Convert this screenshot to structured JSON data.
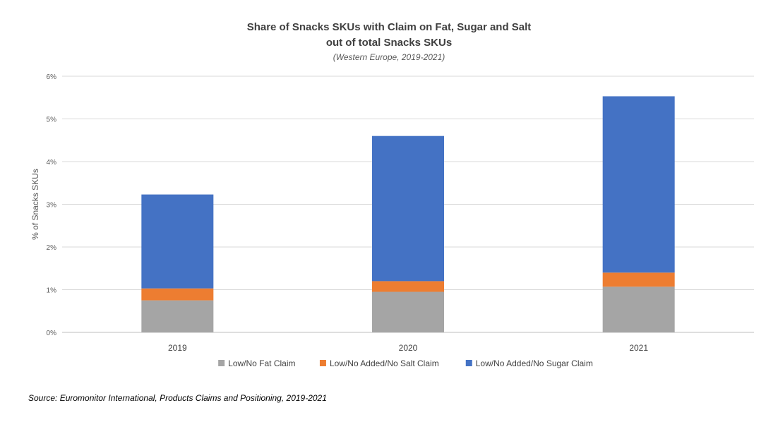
{
  "chart_data": {
    "type": "bar",
    "stacked": true,
    "title_lines": [
      "Share of Snacks SKUs with Claim on Fat, Sugar and Salt",
      "out of total Snacks SKUs"
    ],
    "subtitle": "(Western Europe, 2019-2021)",
    "ylabel": "% of Snacks SKUs",
    "xlabel": "",
    "ylim": [
      0,
      6
    ],
    "yticks": [
      0,
      1,
      2,
      3,
      4,
      5,
      6
    ],
    "ytick_labels": [
      "0%",
      "1%",
      "2%",
      "3%",
      "4%",
      "5%",
      "6%"
    ],
    "grid": true,
    "legend_position": "bottom",
    "categories": [
      "2019",
      "2020",
      "2021"
    ],
    "series": [
      {
        "name": "Low/No Fat Claim",
        "color": "#a5a5a5",
        "values": [
          0.75,
          0.95,
          1.07
        ]
      },
      {
        "name": "Low/No Added/No Salt Claim",
        "color": "#ed7d31",
        "values": [
          0.28,
          0.25,
          0.33
        ]
      },
      {
        "name": "Low/No Added/No Sugar Claim",
        "color": "#4472c4",
        "values": [
          2.2,
          3.4,
          4.13
        ]
      }
    ]
  },
  "source": "Source: Euromonitor International, Products Claims and Positioning, 2019-2021"
}
